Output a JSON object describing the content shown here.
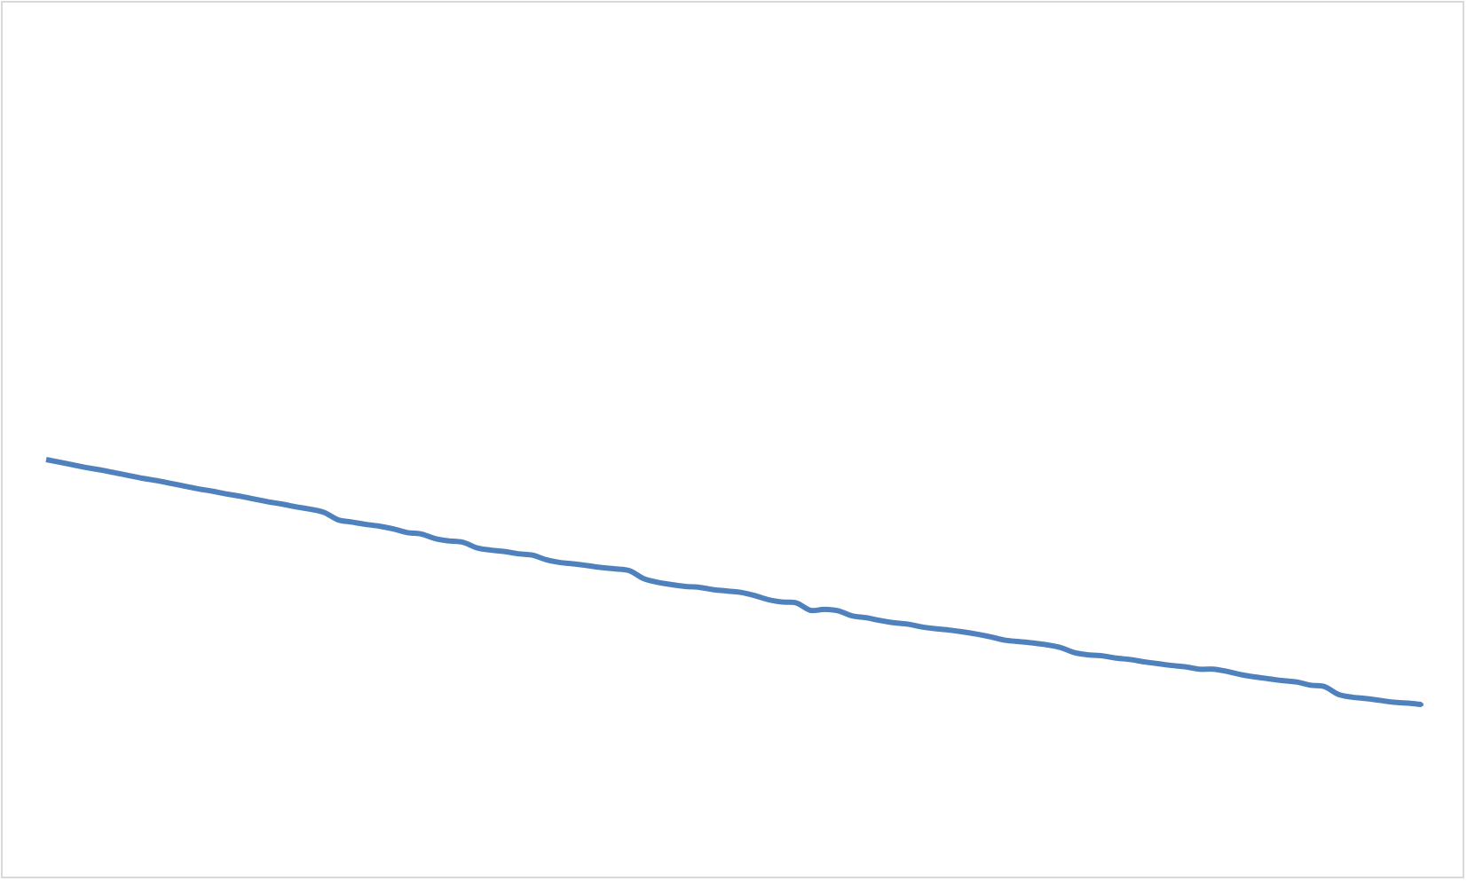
{
  "chart_data": {
    "type": "line",
    "x": [
      1,
      2,
      3,
      4,
      5,
      6,
      7,
      8,
      9,
      10,
      11,
      12,
      13,
      14,
      15,
      16,
      17,
      18,
      19,
      20,
      21,
      22,
      23,
      24,
      25,
      26,
      27,
      28,
      29,
      30,
      31,
      32,
      33,
      34,
      35,
      36,
      37,
      38,
      39,
      40,
      41,
      42,
      43,
      44,
      45,
      46,
      47,
      48,
      49,
      50,
      51,
      52,
      53,
      54,
      55,
      56,
      57,
      58,
      59,
      60,
      61,
      62,
      63,
      64,
      65,
      66,
      67,
      68,
      69,
      70,
      71,
      72,
      73,
      74,
      75,
      76,
      77,
      78,
      79,
      80,
      81,
      82,
      83,
      84,
      85,
      86,
      87,
      88,
      89,
      90,
      91,
      92,
      93,
      94,
      95,
      96,
      97,
      98,
      99,
      100
    ],
    "series": [
      {
        "values": [
          100.0,
          99.4,
          98.8,
          98.2,
          97.7,
          97.1,
          96.5,
          95.9,
          95.4,
          94.8,
          94.2,
          93.6,
          93.1,
          92.5,
          92.0,
          91.4,
          90.8,
          90.3,
          89.7,
          89.2,
          88.5,
          86.9,
          86.4,
          85.9,
          85.5,
          84.9,
          84.1,
          83.8,
          82.8,
          82.3,
          82.0,
          80.8,
          80.3,
          80.0,
          79.5,
          79.2,
          78.2,
          77.6,
          77.3,
          76.9,
          76.5,
          76.2,
          75.8,
          74.1,
          73.3,
          72.8,
          72.4,
          72.2,
          71.7,
          71.4,
          71.1,
          70.4,
          69.5,
          69.0,
          68.8,
          67.2,
          67.4,
          67.1,
          66.0,
          65.6,
          65.0,
          64.5,
          64.2,
          63.6,
          63.2,
          62.9,
          62.5,
          62.0,
          61.4,
          60.7,
          60.4,
          60.1,
          59.7,
          59.1,
          58.0,
          57.5,
          57.3,
          56.8,
          56.5,
          56.0,
          55.6,
          55.2,
          54.9,
          54.4,
          54.4,
          53.9,
          53.2,
          52.7,
          52.3,
          51.9,
          51.6,
          50.9,
          50.6,
          48.9,
          48.3,
          48.0,
          47.6,
          47.2,
          47.0,
          46.7
        ]
      }
    ],
    "ylim": [
      0,
      200
    ],
    "line_color": "#4f81bd",
    "background_color": "#ffffff",
    "border_color": "#d9d9d9",
    "grid": false,
    "axes_visible": false
  }
}
